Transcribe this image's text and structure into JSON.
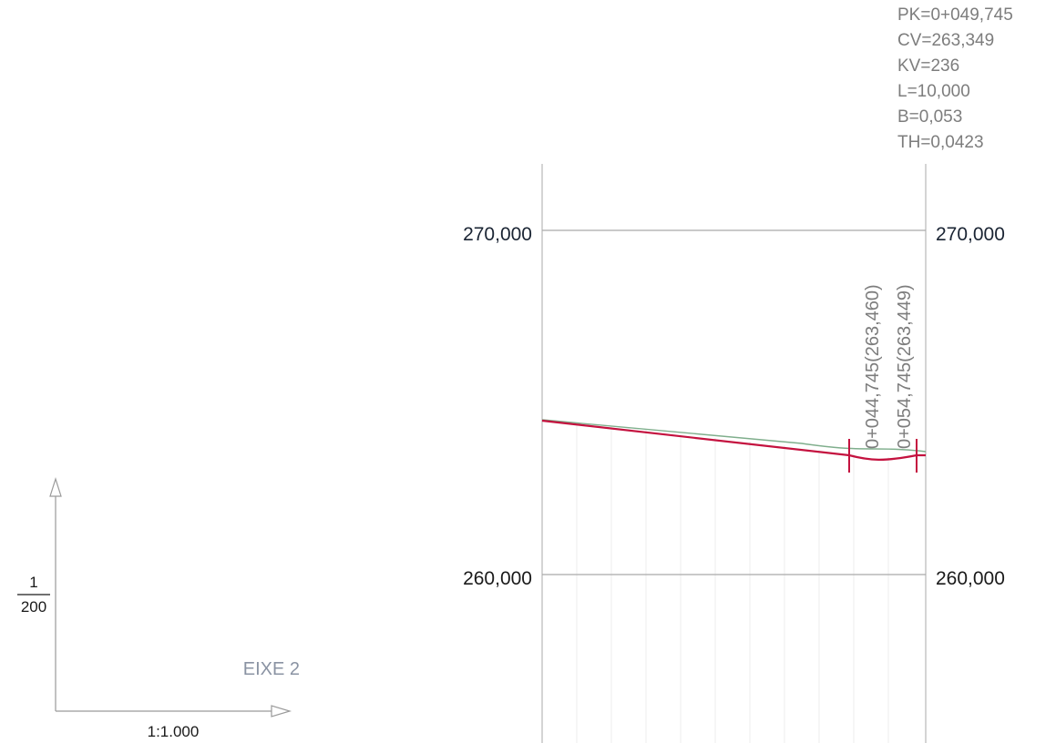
{
  "scale": {
    "vertical_numerator": "1",
    "vertical_denominator": "200",
    "horizontal": "1:1.000",
    "axis_name": "EIXE 2"
  },
  "curve_info": {
    "lines": [
      "PK=0+049,745",
      "CV=263,349",
      "KV=236",
      "L=10,000",
      "B=0,053",
      "TH=0,0423"
    ]
  },
  "elevations": {
    "top_left": "270,000",
    "top_right": "270,000",
    "bottom_left": "260,000",
    "bottom_right": "260,000"
  },
  "markers": {
    "start": "0+044,745(263,460)",
    "end": "0+054,745(263,449)"
  },
  "colors": {
    "design_line": "#c4123f",
    "terrain_line": "#7fae8c",
    "grid": "#b4b4b4",
    "muted_text": "#7d7d7d",
    "dark_text": "#1a1a1a"
  }
}
